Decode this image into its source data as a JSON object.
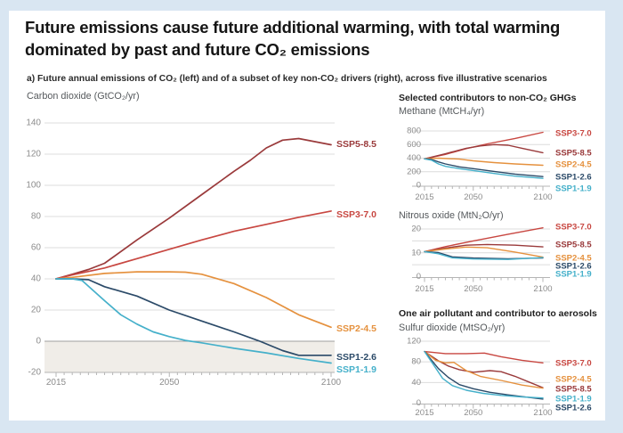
{
  "page": {
    "title": "Future emissions cause future additional warming, with total warming\ndominated by past and future CO₂ emissions",
    "subtitle": "a) Future annual emissions of CO₂ (left) and of a subset of key non-CO₂ drivers (right), across five illustrative scenarios"
  },
  "sections": {
    "non_co2_header": "Selected contributors to non-CO₂ GHGs",
    "aerosol_header": "One air pollutant and contributor to aerosols"
  },
  "colors": {
    "page_bg": "#d9e6f2",
    "card_bg": "#ffffff",
    "grid": "#dcdcdc",
    "zero_line": "#9f9f9f",
    "axis_line": "#b5b5b5",
    "axis_text": "#8c8c8c",
    "shade_below_zero": "#f0ede8",
    "scenarios": {
      "SSP5-8.5": "#9a3a3b",
      "SSP3-7.0": "#c84741",
      "SSP2-4.5": "#e5913e",
      "SSP1-2.6": "#2b4a68",
      "SSP1-1.9": "#45b0ca"
    }
  },
  "chart_data": [
    {
      "id": "co2",
      "type": "line",
      "title": "Carbon dioxide (GtCO₂/yr)",
      "xlim": [
        2015,
        2100
      ],
      "x_ticks": [
        "2015",
        "2050",
        "2100"
      ],
      "x_tick_years": [
        2015,
        2050,
        2100
      ],
      "ylim": [
        -20,
        140
      ],
      "y_ticks": [
        140,
        120,
        100,
        80,
        60,
        40,
        20,
        0,
        -20
      ],
      "y_gridlines": [
        140,
        120,
        100,
        80,
        60,
        40,
        20,
        0,
        -20
      ],
      "shade_below_zero": true,
      "legend_position": "right-end-labels",
      "series": [
        {
          "name": "SSP5-8.5",
          "points": [
            [
              2015,
              40
            ],
            [
              2020,
              43
            ],
            [
              2025,
              46
            ],
            [
              2030,
              50
            ],
            [
              2040,
              65
            ],
            [
              2050,
              79
            ],
            [
              2060,
              94
            ],
            [
              2070,
              109
            ],
            [
              2075,
              116
            ],
            [
              2080,
              124
            ],
            [
              2085,
              129
            ],
            [
              2090,
              130
            ],
            [
              2095,
              128
            ],
            [
              2100,
              126
            ]
          ]
        },
        {
          "name": "SSP3-7.0",
          "points": [
            [
              2015,
              40
            ],
            [
              2020,
              42.5
            ],
            [
              2030,
              47
            ],
            [
              2040,
              53
            ],
            [
              2050,
              59
            ],
            [
              2060,
              65
            ],
            [
              2070,
              70.5
            ],
            [
              2080,
              75
            ],
            [
              2090,
              79.5
            ],
            [
              2100,
              83.5
            ]
          ]
        },
        {
          "name": "SSP2-4.5",
          "points": [
            [
              2015,
              40
            ],
            [
              2020,
              41
            ],
            [
              2030,
              43.5
            ],
            [
              2040,
              44.5
            ],
            [
              2050,
              44.5
            ],
            [
              2055,
              44.3
            ],
            [
              2060,
              43
            ],
            [
              2070,
              37
            ],
            [
              2080,
              28
            ],
            [
              2090,
              17
            ],
            [
              2100,
              9
            ]
          ]
        },
        {
          "name": "SSP1-2.6",
          "points": [
            [
              2015,
              40
            ],
            [
              2020,
              40
            ],
            [
              2025,
              39.5
            ],
            [
              2030,
              35
            ],
            [
              2040,
              29
            ],
            [
              2050,
              20
            ],
            [
              2060,
              13
            ],
            [
              2070,
              6
            ],
            [
              2078,
              0
            ],
            [
              2085,
              -6
            ],
            [
              2090,
              -9
            ],
            [
              2100,
              -9
            ]
          ]
        },
        {
          "name": "SSP1-1.9",
          "points": [
            [
              2015,
              40
            ],
            [
              2020,
              40
            ],
            [
              2023,
              39
            ],
            [
              2030,
              26
            ],
            [
              2035,
              17
            ],
            [
              2040,
              11
            ],
            [
              2045,
              6
            ],
            [
              2050,
              3
            ],
            [
              2055,
              0.5
            ],
            [
              2060,
              -1
            ],
            [
              2070,
              -4.5
            ],
            [
              2080,
              -7.5
            ],
            [
              2090,
              -11
            ],
            [
              2100,
              -14
            ]
          ]
        }
      ]
    },
    {
      "id": "ch4",
      "type": "line",
      "title": "Methane (MtCH₄/yr)",
      "xlim": [
        2015,
        2100
      ],
      "x_ticks": [
        "2015",
        "2050",
        "2100"
      ],
      "x_tick_years": [
        2015,
        2050,
        2100
      ],
      "ylim": [
        0,
        800
      ],
      "y_ticks": [
        800,
        600,
        400,
        200,
        0
      ],
      "y_gridlines": [
        800,
        600,
        400,
        200
      ],
      "shade_below_zero": false,
      "legend_position": "right-end-labels",
      "series": [
        {
          "name": "SSP3-7.0",
          "points": [
            [
              2015,
              390
            ],
            [
              2030,
              455
            ],
            [
              2045,
              540
            ],
            [
              2060,
              610
            ],
            [
              2080,
              690
            ],
            [
              2100,
              780
            ]
          ]
        },
        {
          "name": "SSP5-8.5",
          "points": [
            [
              2015,
              390
            ],
            [
              2030,
              465
            ],
            [
              2045,
              545
            ],
            [
              2055,
              580
            ],
            [
              2065,
              600
            ],
            [
              2075,
              590
            ],
            [
              2085,
              545
            ],
            [
              2100,
              480
            ]
          ]
        },
        {
          "name": "SSP2-4.5",
          "points": [
            [
              2015,
              390
            ],
            [
              2025,
              400
            ],
            [
              2040,
              385
            ],
            [
              2050,
              360
            ],
            [
              2065,
              335
            ],
            [
              2080,
              315
            ],
            [
              2100,
              295
            ]
          ]
        },
        {
          "name": "SSP1-2.6",
          "points": [
            [
              2015,
              390
            ],
            [
              2020,
              380
            ],
            [
              2025,
              345
            ],
            [
              2030,
              315
            ],
            [
              2040,
              272
            ],
            [
              2050,
              245
            ],
            [
              2065,
              205
            ],
            [
              2080,
              165
            ],
            [
              2100,
              128
            ]
          ]
        },
        {
          "name": "SSP1-1.9",
          "points": [
            [
              2015,
              390
            ],
            [
              2020,
              370
            ],
            [
              2025,
              315
            ],
            [
              2030,
              280
            ],
            [
              2040,
              245
            ],
            [
              2050,
              218
            ],
            [
              2065,
              175
            ],
            [
              2080,
              135
            ],
            [
              2100,
              102
            ]
          ]
        }
      ]
    },
    {
      "id": "n2o",
      "type": "line",
      "title": "Nitrous oxide (MtN₂O/yr)",
      "xlim": [
        2015,
        2100
      ],
      "x_ticks": [
        "2015",
        "2050",
        "2100"
      ],
      "x_tick_years": [
        2015,
        2050,
        2100
      ],
      "ylim": [
        0,
        20
      ],
      "y_ticks": [
        20,
        10,
        0
      ],
      "y_gridlines": [
        20,
        15,
        10,
        5
      ],
      "shade_below_zero": false,
      "legend_position": "right-end-labels",
      "series": [
        {
          "name": "SSP3-7.0",
          "points": [
            [
              2015,
              10.5
            ],
            [
              2030,
              12.6
            ],
            [
              2050,
              15
            ],
            [
              2075,
              17.8
            ],
            [
              2100,
              20.5
            ]
          ]
        },
        {
          "name": "SSP5-8.5",
          "points": [
            [
              2015,
              10.5
            ],
            [
              2030,
              12
            ],
            [
              2045,
              13.2
            ],
            [
              2060,
              13.5
            ],
            [
              2080,
              13.2
            ],
            [
              2100,
              12.5
            ]
          ]
        },
        {
          "name": "SSP2-4.5",
          "points": [
            [
              2015,
              10.5
            ],
            [
              2030,
              11.6
            ],
            [
              2045,
              12.4
            ],
            [
              2060,
              12.1
            ],
            [
              2080,
              10.3
            ],
            [
              2100,
              8.2
            ]
          ]
        },
        {
          "name": "SSP1-2.6",
          "points": [
            [
              2015,
              10.5
            ],
            [
              2025,
              10.1
            ],
            [
              2035,
              8.3
            ],
            [
              2050,
              7.8
            ],
            [
              2075,
              7.5
            ],
            [
              2100,
              7.8
            ]
          ]
        },
        {
          "name": "SSP1-1.9",
          "points": [
            [
              2015,
              10.5
            ],
            [
              2025,
              9.6
            ],
            [
              2035,
              7.9
            ],
            [
              2050,
              7.4
            ],
            [
              2075,
              7.2
            ],
            [
              2100,
              8
            ]
          ]
        }
      ]
    },
    {
      "id": "so2",
      "type": "line",
      "title": "Sulfur dioxide (MtSO₂/yr)",
      "xlim": [
        2015,
        2100
      ],
      "x_ticks": [
        "2015",
        "2050",
        "2100"
      ],
      "x_tick_years": [
        2015,
        2050,
        2100
      ],
      "ylim": [
        0,
        120
      ],
      "y_ticks": [
        120,
        80,
        40,
        0
      ],
      "y_gridlines": [
        120,
        80,
        40
      ],
      "shade_below_zero": false,
      "legend_position": "right-end-labels",
      "series": [
        {
          "name": "SSP3-7.0",
          "points": [
            [
              2015,
              100
            ],
            [
              2030,
              96
            ],
            [
              2045,
              96
            ],
            [
              2058,
              97
            ],
            [
              2070,
              90
            ],
            [
              2085,
              83
            ],
            [
              2100,
              78
            ]
          ]
        },
        {
          "name": "SSP5-8.5",
          "points": [
            [
              2015,
              100
            ],
            [
              2025,
              82
            ],
            [
              2032,
              72
            ],
            [
              2040,
              65
            ],
            [
              2050,
              60
            ],
            [
              2062,
              63
            ],
            [
              2070,
              61
            ],
            [
              2080,
              52
            ],
            [
              2090,
              41
            ],
            [
              2100,
              30
            ]
          ]
        },
        {
          "name": "SSP2-4.5",
          "points": [
            [
              2015,
              100
            ],
            [
              2023,
              83
            ],
            [
              2030,
              78
            ],
            [
              2036,
              79
            ],
            [
              2045,
              63
            ],
            [
              2055,
              52
            ],
            [
              2070,
              44
            ],
            [
              2085,
              35
            ],
            [
              2100,
              29
            ]
          ]
        },
        {
          "name": "SSP1-2.6",
          "points": [
            [
              2015,
              100
            ],
            [
              2025,
              67
            ],
            [
              2032,
              50
            ],
            [
              2040,
              36
            ],
            [
              2050,
              28
            ],
            [
              2062,
              21
            ],
            [
              2075,
              16
            ],
            [
              2090,
              11
            ],
            [
              2100,
              8
            ]
          ]
        },
        {
          "name": "SSP1-1.9",
          "points": [
            [
              2015,
              100
            ],
            [
              2022,
              72
            ],
            [
              2028,
              48
            ],
            [
              2035,
              34
            ],
            [
              2045,
              25
            ],
            [
              2057,
              19
            ],
            [
              2070,
              15
            ],
            [
              2085,
              12
            ],
            [
              2100,
              10
            ]
          ]
        }
      ]
    }
  ]
}
